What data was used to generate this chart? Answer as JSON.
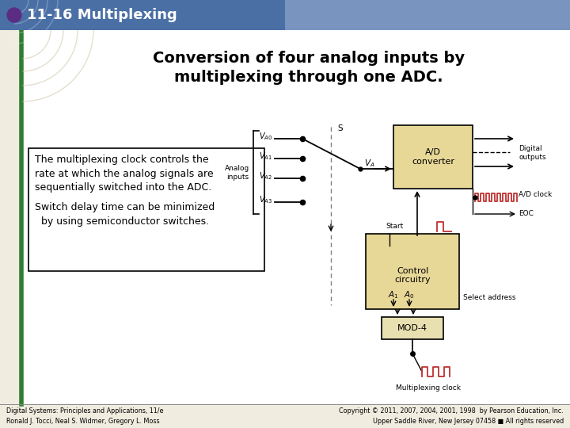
{
  "title_bar_color": "#5B7DB1",
  "title_bg_gradient_left": "#4A6FA5",
  "title_bg_gradient_right": "#8A9FC0",
  "title_text": "11-16 Multiplexing",
  "title_bullet_color": "#5B2D82",
  "slide_bg": "#F0EDE0",
  "heading": "Conversion of four analog inputs by\nmultiplexing through one ADC.",
  "text_box_lines1": "The multiplexing clock controls the\nrate at which the analog signals are\nsequentially switched into the ADC.",
  "text_box_lines2": "Switch delay time can be minimized\n  by using semiconductor switches.",
  "footer_left": "Digital Systems: Principles and Applications, 11/e\nRonald J. Tocci, Neal S. Widmer, Gregory L. Moss",
  "footer_right": "Copyright © 2011, 2007, 2004, 2001, 1998  by Pearson Education, Inc.\nUpper Saddle River, New Jersey 07458 ■ All rights reserved",
  "green_line_color": "#2E7D32",
  "box_fill": "#E8D898",
  "mod4_fill": "#E8E0B0",
  "waveform_color": "#C03030"
}
